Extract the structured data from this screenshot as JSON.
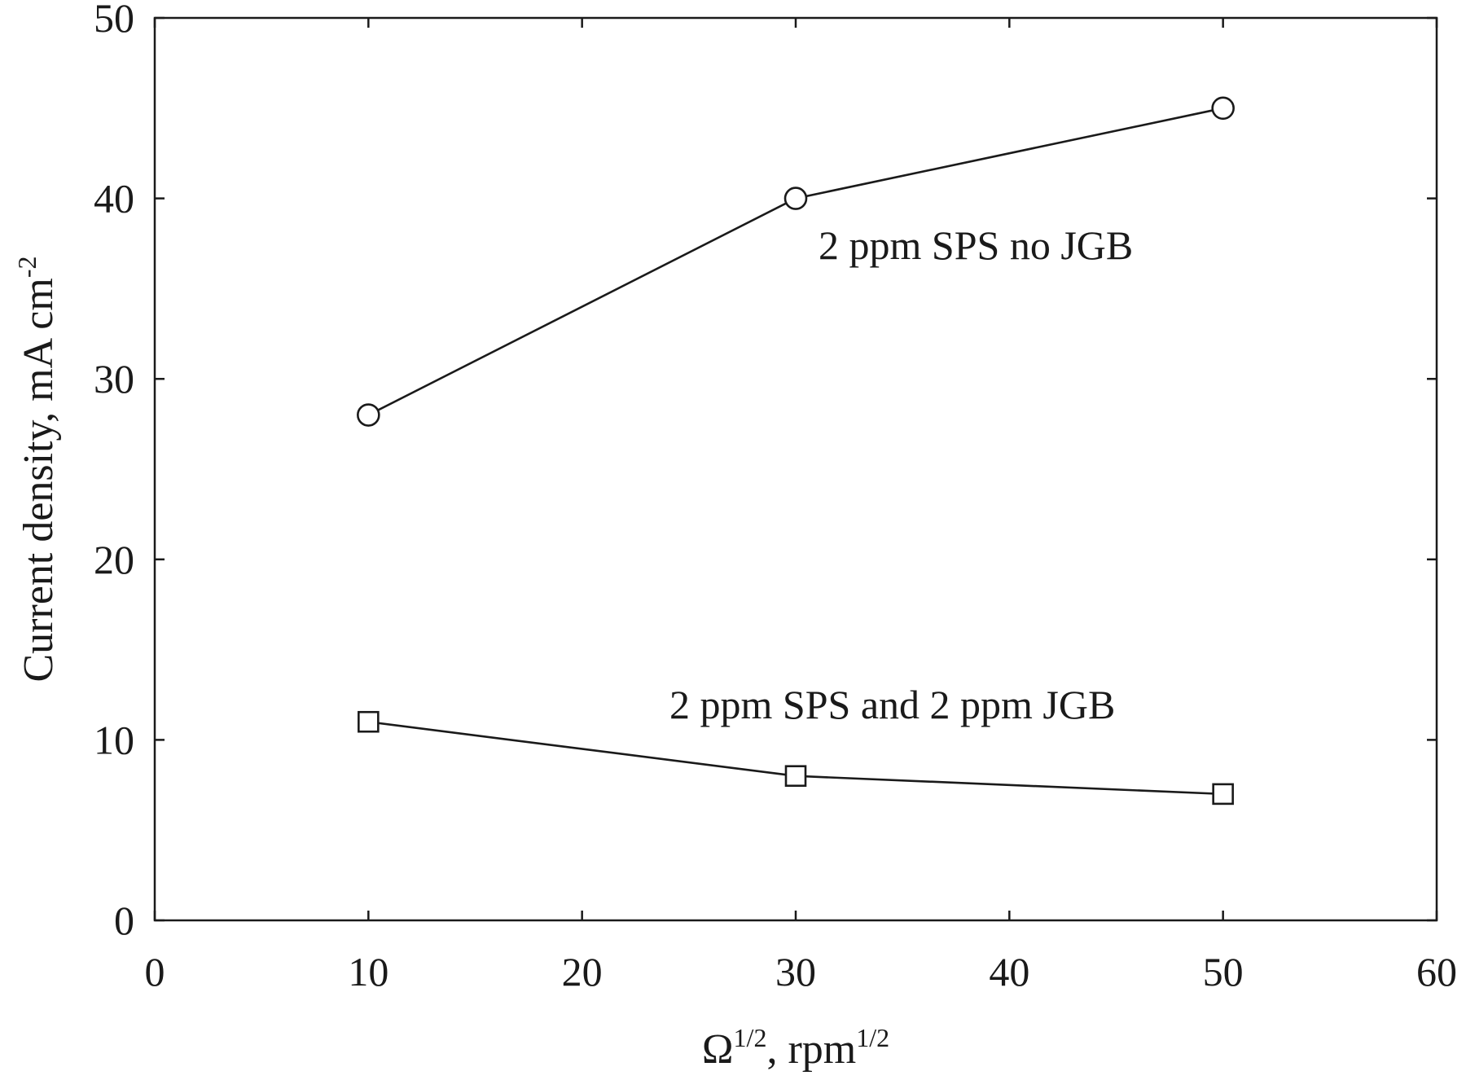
{
  "chart_data": {
    "type": "line",
    "title": "",
    "xlabel": {
      "base": "Ω",
      "sup1": "1/2",
      "mid": ", rpm",
      "sup2": "1/2"
    },
    "ylabel": {
      "base": "Current density, mA cm",
      "sup": "-2"
    },
    "xlim": [
      0,
      60
    ],
    "ylim": [
      0,
      50
    ],
    "xticks": [
      0,
      10,
      20,
      30,
      40,
      50,
      60
    ],
    "yticks": [
      0,
      10,
      20,
      30,
      40,
      50
    ],
    "grid": false,
    "series": [
      {
        "name": "2 ppm SPS no JGB",
        "marker": "circle",
        "x": [
          10,
          30,
          50
        ],
        "y": [
          28,
          40,
          45
        ]
      },
      {
        "name": "2 ppm SPS and 2 ppm JGB",
        "marker": "square",
        "x": [
          10,
          30,
          50
        ],
        "y": [
          11,
          8,
          7
        ]
      }
    ]
  }
}
